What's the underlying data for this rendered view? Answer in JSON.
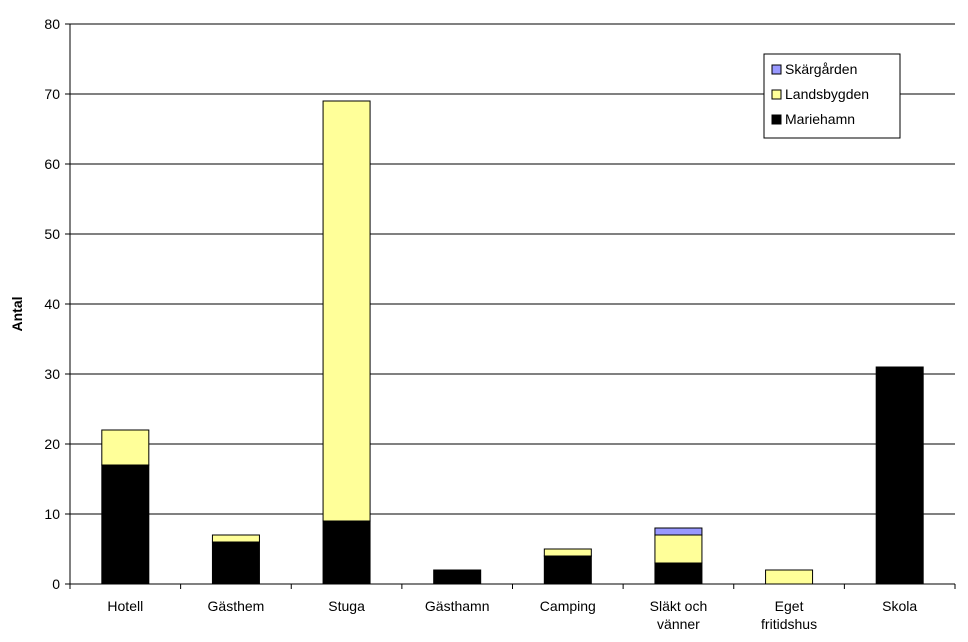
{
  "chart_data": {
    "type": "bar",
    "stacked": true,
    "categories": [
      [
        "Hotell"
      ],
      [
        "Gästhem"
      ],
      [
        "Stuga"
      ],
      [
        "Gästhamn"
      ],
      [
        "Camping"
      ],
      [
        "Släkt och",
        "vänner"
      ],
      [
        "Eget",
        "fritidshus"
      ],
      [
        "Skola"
      ]
    ],
    "series": [
      {
        "name": "Mariehamn",
        "color": "#000000",
        "values": [
          17,
          6,
          9,
          2,
          4,
          3,
          0,
          31
        ]
      },
      {
        "name": "Landsbygden",
        "color": "#FFFF99",
        "values": [
          5,
          1,
          60,
          0,
          1,
          4,
          2,
          0
        ]
      },
      {
        "name": "Skärgården",
        "color": "#9999FF",
        "values": [
          0,
          0,
          0,
          0,
          0,
          1,
          0,
          0
        ]
      }
    ],
    "legend_order": [
      "Skärgården",
      "Landsbygden",
      "Mariehamn"
    ],
    "legend_position": "top-right",
    "ylabel": "Antal",
    "ylim": [
      0,
      80
    ],
    "yticks": [
      0,
      10,
      20,
      30,
      40,
      50,
      60,
      70,
      80
    ],
    "grid": true
  }
}
